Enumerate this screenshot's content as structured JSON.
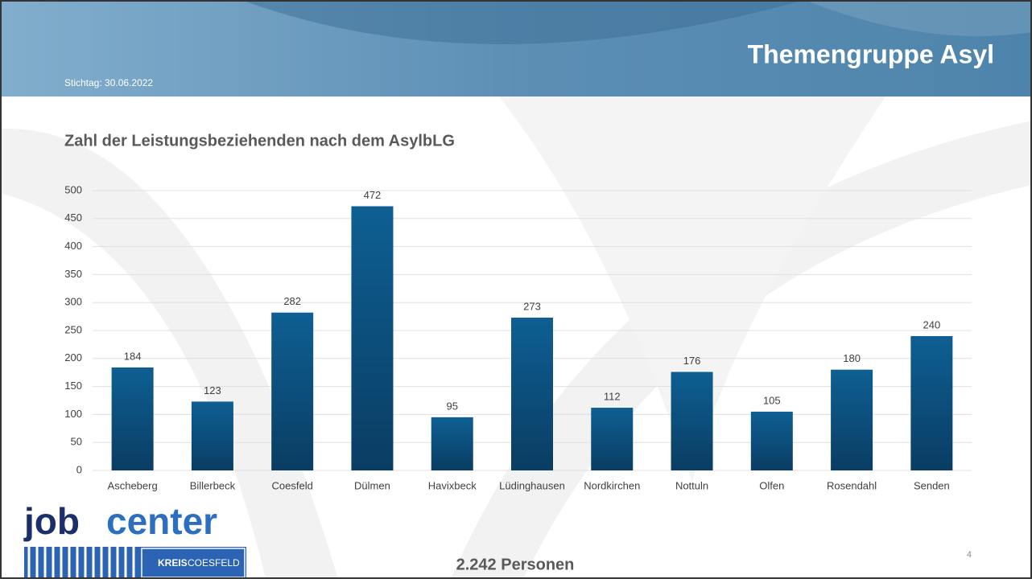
{
  "header": {
    "title": "Themengruppe Asyl",
    "date": "Stichtag: 30.06.2022"
  },
  "chart_data": {
    "type": "bar",
    "title": "Zahl der Leistungsbeziehenden nach dem AsylbLG",
    "categories": [
      "Ascheberg",
      "Billerbeck",
      "Coesfeld",
      "Dülmen",
      "Havixbeck",
      "Lüdinghausen",
      "Nordkirchen",
      "Nottuln",
      "Olfen",
      "Rosendahl",
      "Senden"
    ],
    "values": [
      184,
      123,
      282,
      472,
      95,
      273,
      112,
      176,
      105,
      180,
      240
    ],
    "color": "#0e5f93",
    "ylim": [
      0,
      500
    ],
    "yticks": [
      0,
      50,
      100,
      150,
      200,
      250,
      300,
      350,
      400,
      450,
      500
    ],
    "grid": true
  },
  "footer": {
    "total": "2.242 Personen",
    "page": "4",
    "logo_job": "job",
    "logo_center": "center",
    "logo_kreis": "KREIS",
    "logo_coesfeld": "COESFELD"
  }
}
